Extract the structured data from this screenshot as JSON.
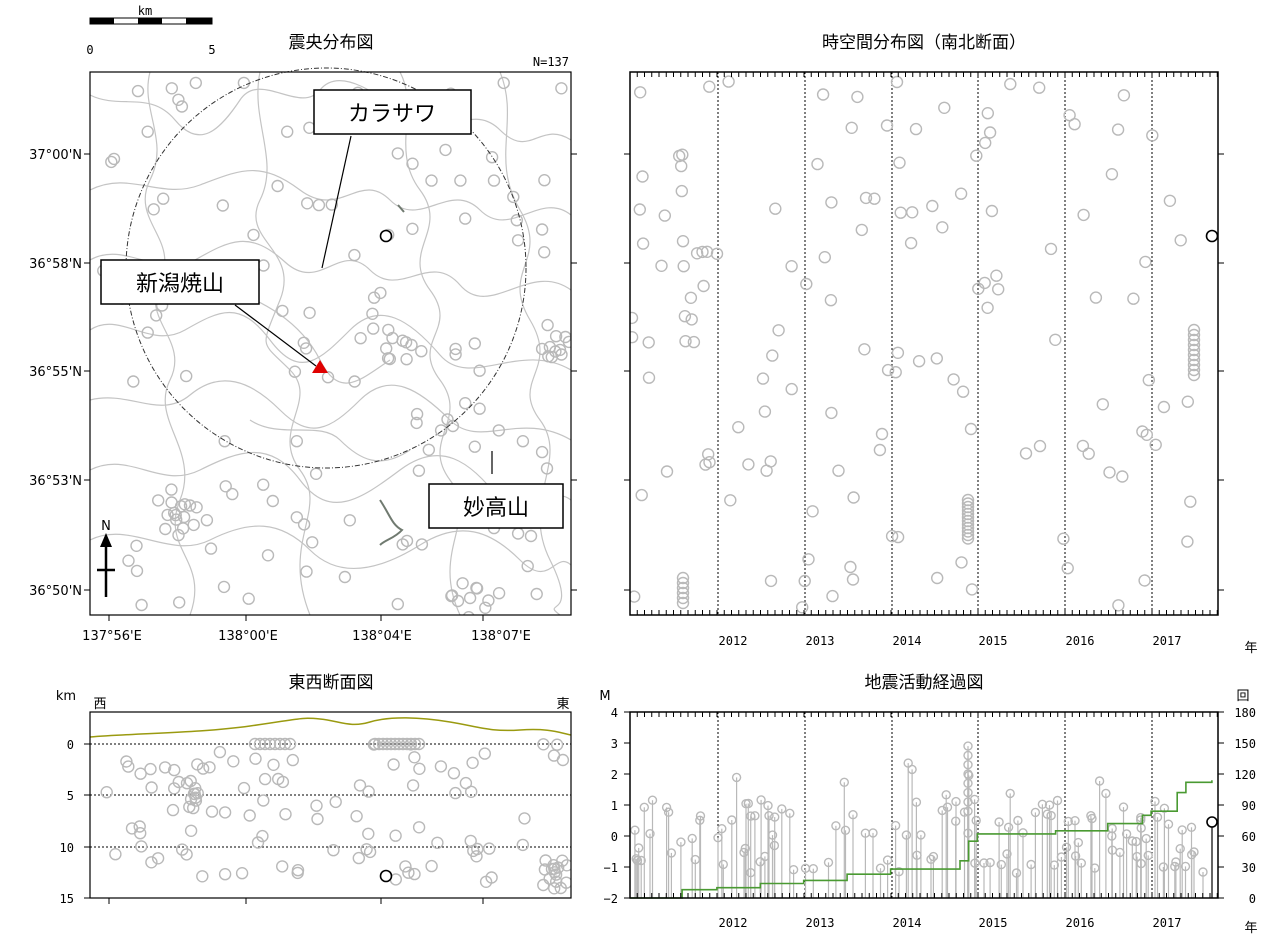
{
  "colors": {
    "event": "#b9b9b9",
    "latest": "#000000",
    "contour": "#bdbdbd",
    "cum": "#4a9a32",
    "topo": "#9a9a10",
    "volcano": "#e00000"
  },
  "map": {
    "title": "震央分布図",
    "n_label": "N=137",
    "scale": {
      "unit": "km",
      "ticks": [
        "0",
        "5"
      ]
    },
    "north": "N",
    "lon_ticks": [
      "137°56'E",
      "138°00'E",
      "138°04'E",
      "138°07'E"
    ],
    "lat_ticks": [
      "37°00'N",
      "36°58'N",
      "36°55'N",
      "36°53'N",
      "36°50'N"
    ],
    "callouts": {
      "karasawa": "カラサワ",
      "niigata": "新潟焼山",
      "myoko": "妙高山"
    }
  },
  "time_space": {
    "title": "時空間分布図（南北断面）",
    "years": [
      "2012",
      "2013",
      "2014",
      "2015",
      "2016",
      "2017"
    ],
    "year_unit": "年"
  },
  "ew_section": {
    "title": "東西断面図",
    "unit": "km",
    "west": "西",
    "east": "東",
    "depth_ticks": [
      "0",
      "5",
      "10",
      "15"
    ]
  },
  "activity": {
    "title": "地震活動経過図",
    "m_unit": "M",
    "count_unit": "回",
    "m_ticks": [
      "4",
      "3",
      "2",
      "1",
      "0",
      "−1",
      "−2"
    ],
    "count_ticks": [
      "180",
      "150",
      "120",
      "90",
      "60",
      "30",
      "0"
    ],
    "years": [
      "2012",
      "2013",
      "2014",
      "2015",
      "2016",
      "2017"
    ],
    "year_unit": "年"
  },
  "chart_data": [
    {
      "type": "scatter",
      "title": "震央分布図",
      "note": "epicenter map",
      "n": 137,
      "events": [
        [
          0.32,
          0.02
        ],
        [
          0.53,
          0.93
        ],
        [
          0.94,
          0.51
        ],
        [
          0.2,
          0.56
        ],
        [
          0.64,
          0.98
        ],
        [
          0.76,
          0.51
        ],
        [
          0.25,
          0.39
        ],
        [
          0.9,
          0.68
        ],
        [
          0.84,
          0.2
        ],
        [
          0.88,
          0.23
        ],
        [
          0.73,
          0.66
        ],
        [
          0.36,
          0.76
        ],
        [
          0.81,
          0.55
        ],
        [
          0.78,
          0.27
        ],
        [
          0.71,
          0.2
        ],
        [
          0.43,
          0.68
        ],
        [
          0.8,
          0.5
        ],
        [
          0.55,
          0.57
        ],
        [
          0.15,
          0.43
        ],
        [
          0.64,
          0.08
        ],
        [
          0.68,
          0.63
        ],
        [
          0.76,
          0.52
        ],
        [
          0.41,
          0.11
        ],
        [
          0.12,
          0.11
        ],
        [
          0.98,
          0.03
        ],
        [
          0.69,
          0.87
        ],
        [
          0.45,
          0.92
        ],
        [
          0.17,
          0.03
        ],
        [
          0.81,
          0.62
        ],
        [
          0.34,
          0.3
        ],
        [
          0.95,
          0.73
        ],
        [
          0.94,
          0.29
        ],
        [
          0.22,
          0.4
        ],
        [
          0.89,
          0.31
        ],
        [
          0.91,
          0.91
        ],
        [
          0.39,
          0.21
        ],
        [
          0.77,
          0.2
        ],
        [
          0.86,
          0.02
        ],
        [
          0.09,
          0.57
        ],
        [
          0.05,
          0.16
        ],
        [
          0.12,
          0.48
        ],
        [
          0.37,
          0.89
        ],
        [
          0.85,
          0.66
        ],
        [
          0.28,
          0.68
        ],
        [
          0.94,
          0.7
        ],
        [
          0.22,
          0.02
        ],
        [
          0.33,
          0.97
        ],
        [
          0.47,
          0.74
        ],
        [
          0.38,
          0.79
        ],
        [
          0.64,
          0.15
        ],
        [
          0.8,
          0.69
        ],
        [
          0.84,
          0.84
        ],
        [
          0.75,
          0.04
        ],
        [
          0.4,
          0.44
        ],
        [
          0.62,
          0.3
        ],
        [
          0.43,
          0.82
        ],
        [
          0.78,
          0.61
        ],
        [
          0.08,
          0.9
        ],
        [
          0.65,
          0.87
        ],
        [
          0.89,
          0.85
        ]
      ],
      "latest": [
        0.61,
        0.3
      ],
      "volcano": [
        0.48,
        0.56
      ]
    },
    {
      "type": "scatter",
      "title": "時空間分布図（南北断面）",
      "x_unit": "年",
      "x": [
        "2012",
        "2013",
        "2014",
        "2015",
        "2016",
        "2017"
      ]
    },
    {
      "type": "scatter",
      "title": "東西断面図",
      "y_unit": "km",
      "y_ticks": [
        0,
        5,
        10,
        15
      ],
      "latest": {
        "x_frac": 0.62,
        "depth": 12.8
      }
    },
    {
      "type": "line",
      "title": "地震活動経過図",
      "ylabel_left": "M",
      "ylabel_right": "回",
      "ylim_left": [
        -2,
        4
      ],
      "ylim_right": [
        0,
        180
      ],
      "x": [
        "2012",
        "2013",
        "2014",
        "2015",
        "2016",
        "2017"
      ],
      "cumulative": [
        [
          2011.0,
          0
        ],
        [
          2011.6,
          8
        ],
        [
          2012.0,
          10
        ],
        [
          2012.5,
          14
        ],
        [
          2013.0,
          17
        ],
        [
          2013.5,
          23
        ],
        [
          2014.0,
          28
        ],
        [
          2014.8,
          36
        ],
        [
          2014.9,
          55
        ],
        [
          2015.0,
          62
        ],
        [
          2015.9,
          65
        ],
        [
          2016.5,
          72
        ],
        [
          2016.9,
          80
        ],
        [
          2017.0,
          84
        ],
        [
          2017.3,
          102
        ],
        [
          2017.4,
          112
        ],
        [
          2017.7,
          114
        ]
      ],
      "latest": {
        "year": 2017.65,
        "magnitude": 0.5
      }
    }
  ]
}
